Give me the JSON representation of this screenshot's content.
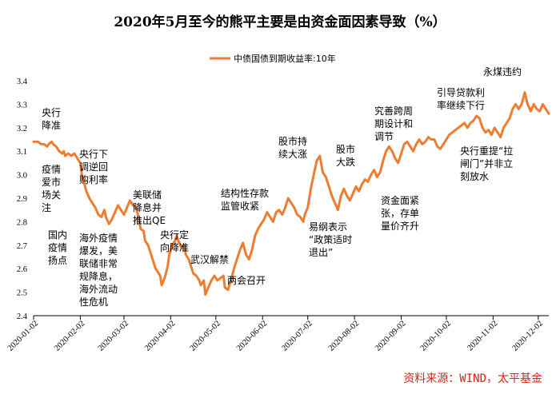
{
  "chart_data": {
    "type": "line",
    "title": "2020年5月至今的熊平主要是由资金面因素导致（%）",
    "series": [
      {
        "name": "中债国债到期收益率:10年",
        "color": "#ed7d31",
        "points": [
          [
            0,
            3.14
          ],
          [
            3,
            3.14
          ],
          [
            5,
            3.13
          ],
          [
            7,
            3.13
          ],
          [
            9,
            3.12
          ],
          [
            10,
            3.13
          ],
          [
            12,
            3.14
          ],
          [
            13,
            3.13
          ],
          [
            15,
            3.12
          ],
          [
            17,
            3.1
          ],
          [
            19,
            3.09
          ],
          [
            20,
            3.1
          ],
          [
            21,
            3.08
          ],
          [
            23,
            3.09
          ],
          [
            25,
            3.08
          ],
          [
            27,
            3.09
          ],
          [
            29,
            3.07
          ],
          [
            31,
            3.05
          ],
          [
            32,
            3.0
          ],
          [
            33,
            2.98
          ],
          [
            35,
            2.93
          ],
          [
            37,
            2.9
          ],
          [
            39,
            2.88
          ],
          [
            41,
            2.86
          ],
          [
            43,
            2.83
          ],
          [
            45,
            2.82
          ],
          [
            47,
            2.85
          ],
          [
            48,
            2.82
          ],
          [
            50,
            2.79
          ],
          [
            52,
            2.81
          ],
          [
            54,
            2.84
          ],
          [
            56,
            2.87
          ],
          [
            58,
            2.85
          ],
          [
            60,
            2.83
          ],
          [
            62,
            2.86
          ],
          [
            64,
            2.89
          ],
          [
            66,
            2.87
          ],
          [
            68,
            2.86
          ],
          [
            70,
            2.81
          ],
          [
            71,
            2.77
          ],
          [
            73,
            2.76
          ],
          [
            74,
            2.72
          ],
          [
            76,
            2.7
          ],
          [
            78,
            2.66
          ],
          [
            80,
            2.62
          ],
          [
            81,
            2.6
          ],
          [
            83,
            2.58
          ],
          [
            84,
            2.57
          ],
          [
            85,
            2.53
          ],
          [
            87,
            2.56
          ],
          [
            89,
            2.61
          ],
          [
            90,
            2.66
          ],
          [
            92,
            2.7
          ],
          [
            94,
            2.72
          ],
          [
            95,
            2.74
          ],
          [
            96,
            2.72
          ],
          [
            98,
            2.69
          ],
          [
            100,
            2.7
          ],
          [
            101,
            2.66
          ],
          [
            103,
            2.64
          ],
          [
            105,
            2.6
          ],
          [
            106,
            2.58
          ],
          [
            108,
            2.57
          ],
          [
            110,
            2.55
          ],
          [
            111,
            2.53
          ],
          [
            113,
            2.55
          ],
          [
            114,
            2.49
          ],
          [
            116,
            2.52
          ],
          [
            118,
            2.55
          ],
          [
            120,
            2.57
          ],
          [
            122,
            2.55
          ],
          [
            124,
            2.56
          ],
          [
            126,
            2.57
          ],
          [
            127,
            2.52
          ],
          [
            129,
            2.51
          ],
          [
            131,
            2.55
          ],
          [
            133,
            2.6
          ],
          [
            135,
            2.64
          ],
          [
            137,
            2.68
          ],
          [
            139,
            2.71
          ],
          [
            141,
            2.66
          ],
          [
            143,
            2.64
          ],
          [
            145,
            2.68
          ],
          [
            147,
            2.74
          ],
          [
            149,
            2.77
          ],
          [
            151,
            2.79
          ],
          [
            153,
            2.81
          ],
          [
            155,
            2.84
          ],
          [
            157,
            2.82
          ],
          [
            159,
            2.8
          ],
          [
            161,
            2.84
          ],
          [
            163,
            2.85
          ],
          [
            165,
            2.83
          ],
          [
            167,
            2.86
          ],
          [
            169,
            2.9
          ],
          [
            171,
            2.88
          ],
          [
            173,
            2.86
          ],
          [
            175,
            2.83
          ],
          [
            177,
            2.82
          ],
          [
            179,
            2.8
          ],
          [
            180,
            2.83
          ],
          [
            182,
            2.86
          ],
          [
            184,
            2.94
          ],
          [
            186,
            3.0
          ],
          [
            188,
            3.06
          ],
          [
            190,
            3.08
          ],
          [
            192,
            3.01
          ],
          [
            194,
            2.99
          ],
          [
            196,
            2.95
          ],
          [
            198,
            2.91
          ],
          [
            200,
            2.88
          ],
          [
            202,
            2.85
          ],
          [
            204,
            2.91
          ],
          [
            206,
            2.94
          ],
          [
            208,
            2.91
          ],
          [
            210,
            2.89
          ],
          [
            212,
            2.92
          ],
          [
            214,
            2.95
          ],
          [
            216,
            2.93
          ],
          [
            218,
            2.96
          ],
          [
            220,
            2.98
          ],
          [
            222,
            2.97
          ],
          [
            224,
            3.0
          ],
          [
            226,
            3.02
          ],
          [
            228,
            2.99
          ],
          [
            230,
            3.01
          ],
          [
            232,
            3.06
          ],
          [
            234,
            3.1
          ],
          [
            236,
            3.12
          ],
          [
            238,
            3.1
          ],
          [
            240,
            3.07
          ],
          [
            242,
            3.05
          ],
          [
            244,
            3.09
          ],
          [
            246,
            3.13
          ],
          [
            248,
            3.14
          ],
          [
            250,
            3.12
          ],
          [
            252,
            3.1
          ],
          [
            254,
            3.13
          ],
          [
            256,
            3.15
          ],
          [
            258,
            3.13
          ],
          [
            260,
            3.14
          ],
          [
            262,
            3.16
          ],
          [
            264,
            3.15
          ],
          [
            266,
            3.15
          ],
          [
            268,
            3.12
          ],
          [
            270,
            3.11
          ],
          [
            272,
            3.13
          ],
          [
            274,
            3.15
          ],
          [
            276,
            3.17
          ],
          [
            278,
            3.18
          ],
          [
            280,
            3.19
          ],
          [
            282,
            3.2
          ],
          [
            284,
            3.21
          ],
          [
            286,
            3.22
          ],
          [
            288,
            3.2
          ],
          [
            290,
            3.22
          ],
          [
            292,
            3.23
          ],
          [
            294,
            3.25
          ],
          [
            296,
            3.24
          ],
          [
            298,
            3.2
          ],
          [
            300,
            3.18
          ],
          [
            302,
            3.19
          ],
          [
            304,
            3.17
          ],
          [
            306,
            3.2
          ],
          [
            308,
            3.18
          ],
          [
            310,
            3.16
          ],
          [
            312,
            3.2
          ],
          [
            314,
            3.22
          ],
          [
            316,
            3.24
          ],
          [
            318,
            3.28
          ],
          [
            320,
            3.3
          ],
          [
            322,
            3.28
          ],
          [
            324,
            3.3
          ],
          [
            326,
            3.35
          ],
          [
            328,
            3.3
          ],
          [
            330,
            3.27
          ],
          [
            332,
            3.3
          ],
          [
            334,
            3.28
          ],
          [
            336,
            3.27
          ],
          [
            338,
            3.3
          ],
          [
            340,
            3.28
          ],
          [
            342,
            3.26
          ]
        ]
      }
    ],
    "x_range": [
      0,
      342
    ],
    "ylim": [
      2.4,
      3.4
    ],
    "y_ticks": [
      "2.4",
      "2.5",
      "2.6",
      "2.7",
      "2.8",
      "2.9",
      "3.0",
      "3.1",
      "3.2",
      "3.3",
      "3.4"
    ],
    "x_tick_positions": [
      0,
      31,
      60,
      91,
      121,
      152,
      182,
      213,
      244,
      274,
      305,
      335
    ],
    "x_tick_labels": [
      "2020-01-02",
      "2020-02-02",
      "2020-03-02",
      "2020-04-02",
      "2020-05-02",
      "2020-06-02",
      "2020-07-02",
      "2020-08-02",
      "2020-09-02",
      "2020-10-02",
      "2020-11-02",
      "2020-12-02"
    ],
    "legend": {
      "position": "top-center"
    },
    "annotations": [
      {
        "lines": [
          "央行",
          "降准"
        ]
      },
      {
        "lines": [
          "疫情",
          "爱市",
          "场关",
          "注"
        ]
      },
      {
        "lines": [
          "国内",
          "疫情",
          "扬点"
        ]
      },
      {
        "lines": [
          "央行下",
          "调逆回",
          "购利率"
        ]
      },
      {
        "lines": [
          "海外疫情",
          "爆发，美",
          "联储非常",
          "规降息，",
          "海外流动",
          "性危机"
        ]
      },
      {
        "lines": [
          "美联储",
          "降息并",
          "推出QE"
        ]
      },
      {
        "lines": [
          "央行定",
          "向降准"
        ]
      },
      {
        "lines": [
          "武汉解禁"
        ]
      },
      {
        "lines": [
          "两会召开"
        ]
      },
      {
        "lines": [
          "结构性存款",
          "监管收紧"
        ]
      },
      {
        "lines": [
          "股市持",
          "续大涨"
        ]
      },
      {
        "lines": [
          "股市",
          "大跌"
        ]
      },
      {
        "lines": [
          "易纲表示",
          "“政策适时",
          "退出”"
        ]
      },
      {
        "lines": [
          "资金面紧",
          "张，存单",
          "量价齐升"
        ]
      },
      {
        "lines": [
          "究善跨周",
          "期设计和",
          "调节"
        ]
      },
      {
        "lines": [
          "引导贷款利",
          "率继续下行"
        ]
      },
      {
        "lines": [
          "永煤违约"
        ]
      },
      {
        "lines": [
          "央行重提“拉",
          "闸门”并非立",
          "刻放水"
        ]
      }
    ],
    "source": "资料来源：WIND，太平基金"
  }
}
